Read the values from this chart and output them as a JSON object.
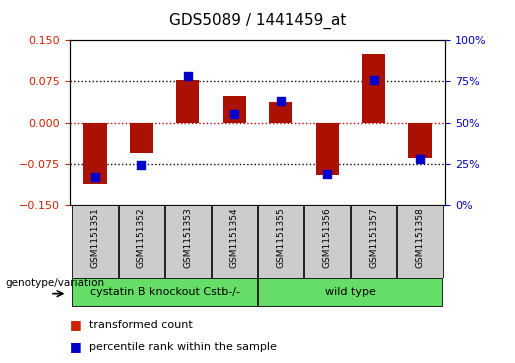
{
  "title": "GDS5089 / 1441459_at",
  "samples": [
    "GSM1151351",
    "GSM1151352",
    "GSM1151353",
    "GSM1151354",
    "GSM1151355",
    "GSM1151356",
    "GSM1151357",
    "GSM1151358"
  ],
  "transformed_count": [
    -0.112,
    -0.055,
    0.078,
    0.048,
    0.038,
    -0.095,
    0.125,
    -0.065
  ],
  "percentile_rank": [
    17,
    24,
    78,
    55,
    63,
    19,
    76,
    28
  ],
  "group1_label": "cystatin B knockout Cstb-/-",
  "group2_label": "wild type",
  "group1_samples": 4,
  "group2_samples": 4,
  "group_color": "#66dd66",
  "ylim_left": [
    -0.15,
    0.15
  ],
  "ylim_right": [
    0,
    100
  ],
  "yticks_left": [
    -0.15,
    -0.075,
    0,
    0.075,
    0.15
  ],
  "yticks_right": [
    0,
    25,
    50,
    75,
    100
  ],
  "bar_color": "#aa1100",
  "dot_color": "#0000cc",
  "hline0_color": "#cc0000",
  "hline_color": "black",
  "legend_items": [
    "transformed count",
    "percentile rank within the sample"
  ],
  "legend_colors": [
    "#cc2200",
    "#0000cc"
  ],
  "bar_width": 0.5,
  "dot_size": 40,
  "left_ytick_color": "#cc2200",
  "right_ytick_color": "#0000bb",
  "title_fontsize": 11,
  "tick_fontsize": 8,
  "sample_fontsize": 6.5,
  "geno_fontsize": 8,
  "legend_fontsize": 8
}
